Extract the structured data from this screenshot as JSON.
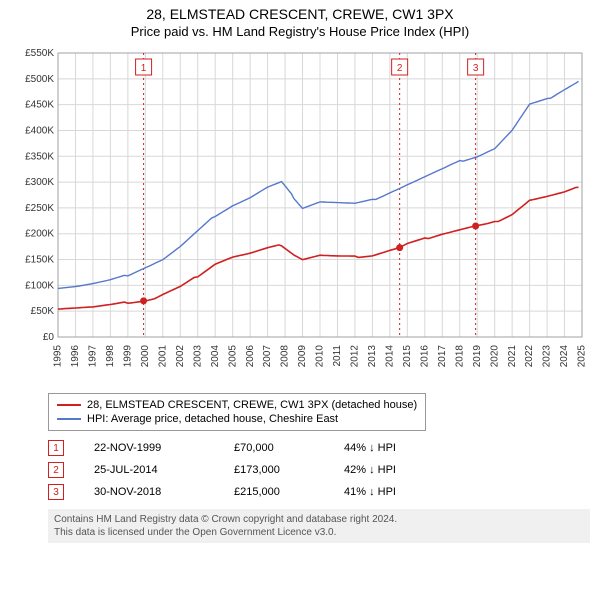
{
  "title": "28, ELMSTEAD CRESCENT, CREWE, CW1 3PX",
  "subtitle": "Price paid vs. HM Land Registry's House Price Index (HPI)",
  "chart": {
    "type": "line",
    "background_color": "#ffffff",
    "grid_color": "#d8d8d8",
    "plot_border_color": "#a0a0a0",
    "x_years": [
      1995,
      1996,
      1997,
      1998,
      1999,
      2000,
      2001,
      2002,
      2003,
      2004,
      2005,
      2006,
      2007,
      2008,
      2009,
      2010,
      2011,
      2012,
      2013,
      2014,
      2015,
      2016,
      2017,
      2018,
      2019,
      2020,
      2021,
      2022,
      2023,
      2024,
      2025
    ],
    "ylim": [
      0,
      550000
    ],
    "ytick_step": 50000,
    "ytick_labels": [
      "£0",
      "£50K",
      "£100K",
      "£150K",
      "£200K",
      "£250K",
      "£300K",
      "£350K",
      "£400K",
      "£450K",
      "£500K",
      "£550K"
    ],
    "xlabel_fontsize": 10,
    "ylabel_fontsize": 10,
    "xlabel_rotation": -90,
    "series": [
      {
        "name": "property",
        "label": "28, ELMSTEAD CRESCENT, CREWE, CW1 3PX (detached house)",
        "color": "#d02020",
        "line_width": 1.6,
        "data": [
          [
            1995,
            55000
          ],
          [
            1996,
            56500
          ],
          [
            1997,
            58000
          ],
          [
            1998,
            62000
          ],
          [
            1999,
            67000
          ],
          [
            1999.9,
            70000
          ],
          [
            2000.5,
            74000
          ],
          [
            2001,
            82000
          ],
          [
            2002,
            97000
          ],
          [
            2003,
            118000
          ],
          [
            2004,
            142000
          ],
          [
            2005,
            155000
          ],
          [
            2006,
            162000
          ],
          [
            2007,
            172000
          ],
          [
            2007.8,
            178000
          ],
          [
            2008.5,
            160000
          ],
          [
            2009,
            150000
          ],
          [
            2010,
            158000
          ],
          [
            2011,
            156000
          ],
          [
            2012,
            155000
          ],
          [
            2013,
            158000
          ],
          [
            2014,
            168000
          ],
          [
            2014.56,
            173000
          ],
          [
            2015,
            180000
          ],
          [
            2016,
            190000
          ],
          [
            2017,
            200000
          ],
          [
            2018,
            208000
          ],
          [
            2018.91,
            215000
          ],
          [
            2019.5,
            218000
          ],
          [
            2020,
            222000
          ],
          [
            2021,
            238000
          ],
          [
            2022,
            265000
          ],
          [
            2023,
            272000
          ],
          [
            2024,
            280000
          ],
          [
            2024.8,
            290000
          ]
        ]
      },
      {
        "name": "hpi",
        "label": "HPI: Average price, detached house, Cheshire East",
        "color": "#5577cc",
        "line_width": 1.4,
        "data": [
          [
            1995,
            95000
          ],
          [
            1996,
            98000
          ],
          [
            1997,
            103000
          ],
          [
            1998,
            110000
          ],
          [
            1999,
            120000
          ],
          [
            2000,
            135000
          ],
          [
            2001,
            150000
          ],
          [
            2002,
            175000
          ],
          [
            2003,
            205000
          ],
          [
            2004,
            235000
          ],
          [
            2005,
            255000
          ],
          [
            2006,
            270000
          ],
          [
            2007,
            290000
          ],
          [
            2007.8,
            300000
          ],
          [
            2008.5,
            270000
          ],
          [
            2009,
            250000
          ],
          [
            2010,
            262000
          ],
          [
            2011,
            260000
          ],
          [
            2012,
            258000
          ],
          [
            2013,
            265000
          ],
          [
            2014,
            280000
          ],
          [
            2015,
            295000
          ],
          [
            2016,
            310000
          ],
          [
            2017,
            325000
          ],
          [
            2018,
            340000
          ],
          [
            2019,
            350000
          ],
          [
            2020,
            365000
          ],
          [
            2021,
            400000
          ],
          [
            2022,
            450000
          ],
          [
            2023,
            460000
          ],
          [
            2024,
            480000
          ],
          [
            2024.8,
            495000
          ]
        ]
      }
    ],
    "markers": [
      {
        "num": "1",
        "year": 1999.9,
        "price": 70000,
        "color": "#d02020"
      },
      {
        "num": "2",
        "year": 2014.56,
        "price": 173000,
        "color": "#d02020"
      },
      {
        "num": "3",
        "year": 2018.91,
        "price": 215000,
        "color": "#d02020"
      }
    ],
    "marker_line_color": "#d02020",
    "marker_line_dash": "2,3",
    "marker_box_border": "#d02020",
    "marker_box_fill": "#ffffff",
    "marker_box_text_color": "#d02020",
    "marker_dot_radius": 3.5
  },
  "legend": {
    "items": [
      {
        "color": "#d02020",
        "label": "28, ELMSTEAD CRESCENT, CREWE, CW1 3PX (detached house)"
      },
      {
        "color": "#5577cc",
        "label": "HPI: Average price, detached house, Cheshire East"
      }
    ]
  },
  "events": [
    {
      "num": "1",
      "date": "22-NOV-1999",
      "price": "£70,000",
      "delta": "44% ↓ HPI"
    },
    {
      "num": "2",
      "date": "25-JUL-2014",
      "price": "£173,000",
      "delta": "42% ↓ HPI"
    },
    {
      "num": "3",
      "date": "30-NOV-2018",
      "price": "£215,000",
      "delta": "41% ↓ HPI"
    }
  ],
  "footer": {
    "line1": "Contains HM Land Registry data © Crown copyright and database right 2024.",
    "line2": "This data is licensed under the Open Government Licence v3.0."
  }
}
